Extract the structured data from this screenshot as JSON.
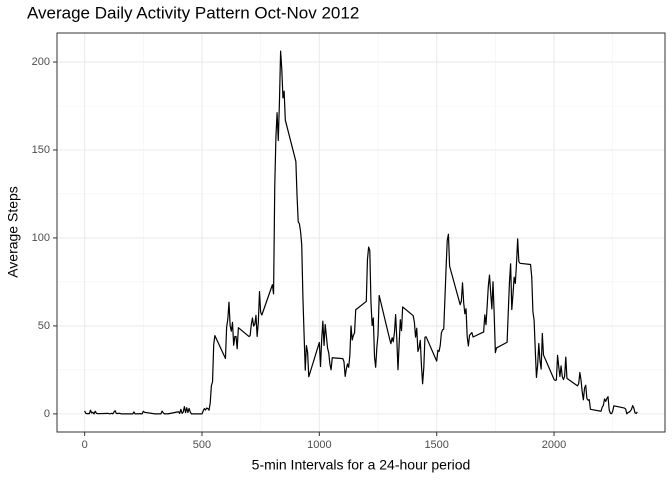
{
  "chart_data": {
    "type": "line",
    "title": "Average Daily Activity Pattern Oct-Nov 2012",
    "x_label": "5-min Intervals for a 24-hour period",
    "y_label": "Average Steps",
    "color": "#000000",
    "grid": true,
    "xlim": [
      -117.75,
      2472.75
    ],
    "ylim": [
      -10.3,
      216.5
    ],
    "xticks": [
      0,
      500,
      1000,
      1500,
      2000
    ],
    "yticks": [
      0,
      50,
      100,
      150,
      200
    ],
    "xminor": [
      250,
      750,
      1250,
      1750,
      2250
    ],
    "yminor": [
      25,
      75,
      125,
      175
    ],
    "x": [
      0,
      5,
      10,
      15,
      20,
      25,
      30,
      35,
      40,
      45,
      50,
      55,
      100,
      105,
      110,
      115,
      120,
      125,
      130,
      135,
      140,
      145,
      150,
      155,
      200,
      205,
      210,
      215,
      220,
      225,
      230,
      235,
      240,
      245,
      250,
      255,
      300,
      305,
      310,
      315,
      320,
      325,
      330,
      335,
      340,
      345,
      350,
      355,
      400,
      405,
      410,
      415,
      420,
      425,
      430,
      435,
      440,
      445,
      450,
      455,
      500,
      505,
      510,
      515,
      520,
      525,
      530,
      535,
      540,
      545,
      550,
      555,
      600,
      605,
      610,
      615,
      620,
      625,
      630,
      635,
      640,
      645,
      650,
      655,
      700,
      705,
      710,
      715,
      720,
      725,
      730,
      735,
      740,
      745,
      750,
      755,
      800,
      805,
      810,
      815,
      820,
      825,
      830,
      835,
      840,
      845,
      850,
      855,
      900,
      905,
      910,
      915,
      920,
      925,
      930,
      935,
      940,
      945,
      950,
      955,
      1000,
      1005,
      1010,
      1015,
      1020,
      1025,
      1030,
      1035,
      1040,
      1045,
      1050,
      1055,
      1100,
      1105,
      1110,
      1115,
      1120,
      1125,
      1130,
      1135,
      1140,
      1145,
      1150,
      1155,
      1200,
      1205,
      1210,
      1215,
      1220,
      1225,
      1230,
      1235,
      1240,
      1245,
      1250,
      1255,
      1300,
      1305,
      1310,
      1315,
      1320,
      1325,
      1330,
      1335,
      1340,
      1345,
      1350,
      1355,
      1400,
      1405,
      1410,
      1415,
      1420,
      1425,
      1430,
      1435,
      1440,
      1445,
      1450,
      1455,
      1500,
      1505,
      1510,
      1515,
      1520,
      1525,
      1530,
      1535,
      1540,
      1545,
      1550,
      1555,
      1600,
      1605,
      1610,
      1615,
      1620,
      1625,
      1630,
      1635,
      1640,
      1645,
      1650,
      1655,
      1700,
      1705,
      1710,
      1715,
      1720,
      1725,
      1730,
      1735,
      1740,
      1745,
      1750,
      1755,
      1800,
      1805,
      1810,
      1815,
      1820,
      1825,
      1830,
      1835,
      1840,
      1845,
      1850,
      1855,
      1900,
      1905,
      1910,
      1915,
      1920,
      1925,
      1930,
      1935,
      1940,
      1945,
      1950,
      1955,
      2000,
      2005,
      2010,
      2015,
      2020,
      2025,
      2030,
      2035,
      2040,
      2045,
      2050,
      2055,
      2100,
      2105,
      2110,
      2115,
      2120,
      2125,
      2130,
      2135,
      2140,
      2145,
      2150,
      2155,
      2200,
      2205,
      2210,
      2215,
      2220,
      2225,
      2230,
      2235,
      2240,
      2245,
      2250,
      2255,
      2300,
      2305,
      2310,
      2315,
      2320,
      2325,
      2330,
      2335,
      2340,
      2345,
      2350,
      2355
    ],
    "values": [
      1.7,
      0.3,
      0.1,
      0.2,
      0.1,
      2.1,
      0.5,
      0.9,
      0,
      1.5,
      0.4,
      0.1,
      0.3,
      0,
      0.1,
      0.3,
      0,
      1.1,
      1.8,
      0.2,
      0.2,
      0.3,
      0.3,
      0,
      0,
      0,
      1.1,
      0,
      0,
      0.1,
      0,
      0.2,
      0,
      0,
      1.5,
      0.9,
      0,
      0,
      0,
      0,
      0,
      0,
      1.6,
      0.6,
      0,
      0,
      0.1,
      0,
      1.2,
      0.3,
      2.6,
      0.3,
      1,
      4.1,
      0.7,
      3.5,
      0.8,
      3.1,
      1.1,
      0,
      0,
      1.6,
      3.0,
      2.2,
      3.3,
      3.0,
      2.1,
      6.1,
      16,
      18.3,
      39.5,
      44.5,
      31.5,
      49.3,
      53.8,
      63.5,
      50,
      47,
      52,
      39,
      44,
      44,
      37,
      49,
      44,
      44.4,
      50.7,
      54.5,
      49.9,
      51,
      56,
      44,
      52,
      69.5,
      57.8,
      56.2,
      73.4,
      68.2,
      129.4,
      157.5,
      171.2,
      155.4,
      177.3,
      206.2,
      195.9,
      179.6,
      183.4,
      167,
      143.5,
      124,
      109.1,
      108.1,
      103.7,
      96,
      66.2,
      45.2,
      24.8,
      38.8,
      35,
      21.1,
      40.6,
      26.9,
      42.4,
      52.7,
      38.9,
      50.8,
      44.3,
      37.4,
      34.7,
      28.3,
      25.1,
      31.9,
      31.4,
      29.7,
      21.3,
      25.5,
      28.4,
      26.5,
      33.3,
      50,
      42,
      44.6,
      46,
      59.2,
      63.9,
      87.7,
      94.8,
      92.8,
      63.4,
      50.2,
      54.5,
      32.4,
      26.5,
      37.7,
      45.1,
      67.3,
      42.3,
      39.9,
      43.3,
      41,
      46.2,
      56.4,
      42.8,
      25.1,
      39.9,
      53.5,
      47.3,
      60.8,
      55.8,
      52,
      43.6,
      48.7,
      35.5,
      37.5,
      41.8,
      27.5,
      17.1,
      26.1,
      43.6,
      43.8,
      30,
      36.1,
      35.5,
      38.8,
      46,
      47.8,
      48.1,
      65.3,
      82.9,
      98.7,
      102.1,
      84,
      62.1,
      64.1,
      74.5,
      63.2,
      56.9,
      59.8,
      43.9,
      38.6,
      44.7,
      45.5,
      46.2,
      43.7,
      46.6,
      56.3,
      50.7,
      61.2,
      72.7,
      78.9,
      68.9,
      59.7,
      75.1,
      56.5,
      34.8,
      37.5,
      40.7,
      58,
      74.7,
      85.3,
      59.3,
      67.8,
      77.7,
      74.2,
      85.3,
      99.5,
      86.6,
      85.6,
      84.9,
      77.8,
      58,
      53.4,
      36.3,
      20.7,
      27.4,
      40,
      30.2,
      25.5,
      45.7,
      33.5,
      19.6,
      19,
      19.3,
      33.3,
      26.8,
      21.2,
      27.3,
      21.3,
      19.5,
      21.3,
      32.3,
      20.2,
      15.9,
      17.2,
      23.5,
      19.2,
      12.5,
      8,
      14.7,
      16.3,
      8.7,
      7.8,
      8.1,
      2.6,
      1.5,
      3.7,
      4.8,
      8.5,
      7.1,
      8.7,
      9.8,
      2.2,
      0.3,
      0.1,
      1.6,
      4.6,
      3.3,
      2.8,
      0,
      0.8,
      1,
      1.6,
      2.6,
      4.7,
      3.3,
      0.6,
      0.2,
      1.1
    ]
  }
}
